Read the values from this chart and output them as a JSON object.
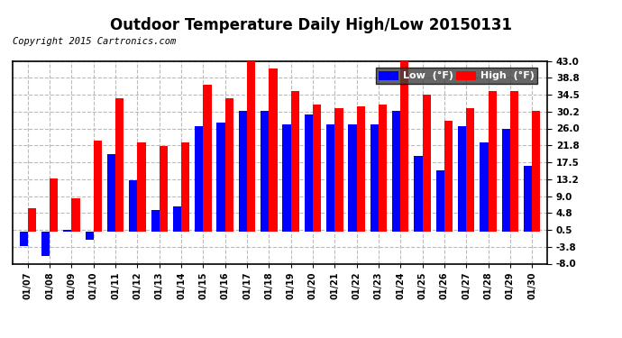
{
  "title": "Outdoor Temperature Daily High/Low 20150131",
  "copyright": "Copyright 2015 Cartronics.com",
  "legend_low_label": "Low  (°F)",
  "legend_high_label": "High  (°F)",
  "dates": [
    "01/07",
    "01/08",
    "01/09",
    "01/10",
    "01/11",
    "01/12",
    "01/13",
    "01/14",
    "01/15",
    "01/16",
    "01/17",
    "01/18",
    "01/19",
    "01/20",
    "01/21",
    "01/22",
    "01/23",
    "01/24",
    "01/25",
    "01/26",
    "01/27",
    "01/28",
    "01/29",
    "01/30"
  ],
  "highs": [
    6.0,
    13.5,
    8.5,
    23.0,
    33.5,
    22.5,
    21.5,
    22.5,
    37.0,
    33.5,
    43.5,
    41.0,
    35.5,
    32.0,
    31.0,
    31.5,
    32.0,
    44.0,
    34.5,
    28.0,
    31.0,
    35.5,
    35.5,
    30.5
  ],
  "lows": [
    -3.5,
    -6.0,
    0.5,
    -2.0,
    19.5,
    13.0,
    5.5,
    6.5,
    26.5,
    27.5,
    30.5,
    30.5,
    27.0,
    29.5,
    27.0,
    27.0,
    27.0,
    30.5,
    19.0,
    15.5,
    26.5,
    22.5,
    26.0,
    16.5
  ],
  "ylim": [
    -8.0,
    43.0
  ],
  "yticks": [
    -8.0,
    -3.8,
    0.5,
    4.8,
    9.0,
    13.2,
    17.5,
    21.8,
    26.0,
    30.2,
    34.5,
    38.8,
    43.0
  ],
  "bar_color_low": "#0000ff",
  "bar_color_high": "#ff0000",
  "background_color": "#ffffff",
  "plot_bg_color": "#ffffff",
  "grid_color": "#bbbbbb",
  "title_fontsize": 12,
  "copyright_fontsize": 7.5,
  "bar_width": 0.38,
  "legend_bg": "#404040"
}
